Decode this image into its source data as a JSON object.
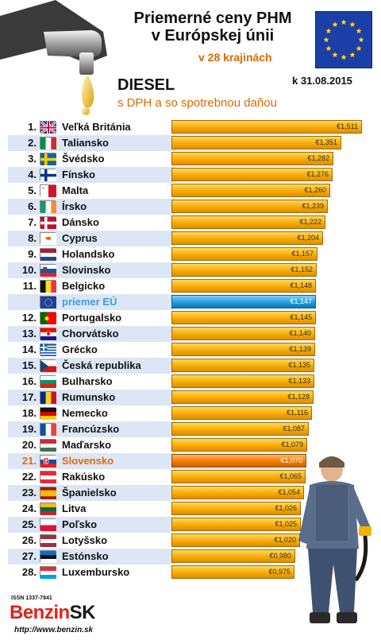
{
  "header": {
    "title_line1": "Priemerné ceny PHM",
    "title_line2": "v Európskej únii",
    "subtitle": "v 28 krajinách",
    "fuel": "DIESEL",
    "date": "k 31.08.2015",
    "tax_note": "s DPH a so spotrebnou daňou"
  },
  "footer": {
    "issn": "ISSN 1337-7841",
    "brand_part1": "Benzin",
    "brand_part2": "SK",
    "url": "http://www.benzin.sk"
  },
  "colors": {
    "bar": "#f5a800",
    "eu_bar": "#1e9ad8",
    "highlight_bar": "#ec7a00"
  },
  "chart_data": {
    "type": "bar",
    "orientation": "horizontal",
    "currency": "€",
    "xlim": [
      0,
      1.6
    ],
    "rows": [
      {
        "rank": "1.",
        "country": "Veľká Británia",
        "value": 1.511,
        "label": "€1,511",
        "flag": "gb"
      },
      {
        "rank": "2.",
        "country": "Taliansko",
        "value": 1.351,
        "label": "€1,351",
        "flag": "it"
      },
      {
        "rank": "3.",
        "country": "Švédsko",
        "value": 1.282,
        "label": "€1,282",
        "flag": "se"
      },
      {
        "rank": "4.",
        "country": "Fínsko",
        "value": 1.276,
        "label": "€1,276",
        "flag": "fi"
      },
      {
        "rank": "5.",
        "country": "Malta",
        "value": 1.26,
        "label": "€1,260",
        "flag": "mt"
      },
      {
        "rank": "6.",
        "country": "Írsko",
        "value": 1.239,
        "label": "€1,239",
        "flag": "ie"
      },
      {
        "rank": "7.",
        "country": "Dánsko",
        "value": 1.222,
        "label": "€1,222",
        "flag": "dk"
      },
      {
        "rank": "8.",
        "country": "Cyprus",
        "value": 1.204,
        "label": "€1,204",
        "flag": "cy"
      },
      {
        "rank": "9.",
        "country": "Holandsko",
        "value": 1.157,
        "label": "€1,157",
        "flag": "nl"
      },
      {
        "rank": "10.",
        "country": "Slovinsko",
        "value": 1.152,
        "label": "€1,152",
        "flag": "si"
      },
      {
        "rank": "11.",
        "country": "Belgicko",
        "value": 1.148,
        "label": "€1,148",
        "flag": "be"
      },
      {
        "rank": "",
        "country": "priemer EÚ",
        "value": 1.147,
        "label": "€1,147",
        "flag": "eu",
        "highlight": "eu"
      },
      {
        "rank": "12.",
        "country": "Portugalsko",
        "value": 1.145,
        "label": "€1,145",
        "flag": "pt"
      },
      {
        "rank": "13.",
        "country": "Chorvátsko",
        "value": 1.14,
        "label": "€1,140",
        "flag": "hr"
      },
      {
        "rank": "14.",
        "country": "Grécko",
        "value": 1.139,
        "label": "€1,139",
        "flag": "gr"
      },
      {
        "rank": "15.",
        "country": "Česká republika",
        "value": 1.135,
        "label": "€1,135",
        "flag": "cz"
      },
      {
        "rank": "16.",
        "country": "Bulharsko",
        "value": 1.133,
        "label": "€1,133",
        "flag": "bg"
      },
      {
        "rank": "17.",
        "country": "Rumunsko",
        "value": 1.128,
        "label": "€1,128",
        "flag": "ro"
      },
      {
        "rank": "18.",
        "country": "Nemecko",
        "value": 1.116,
        "label": "€1,116",
        "flag": "de"
      },
      {
        "rank": "19.",
        "country": "Francúzsko",
        "value": 1.087,
        "label": "€1,087",
        "flag": "fr"
      },
      {
        "rank": "20.",
        "country": "Maďarsko",
        "value": 1.079,
        "label": "€1,079",
        "flag": "hu"
      },
      {
        "rank": "21.",
        "country": "Slovensko",
        "value": 1.07,
        "label": "€1,070",
        "flag": "sk",
        "highlight": "sk"
      },
      {
        "rank": "22.",
        "country": "Rakúsko",
        "value": 1.065,
        "label": "€1,065",
        "flag": "at"
      },
      {
        "rank": "23.",
        "country": "Španielsko",
        "value": 1.054,
        "label": "€1,054",
        "flag": "es"
      },
      {
        "rank": "24.",
        "country": "Litva",
        "value": 1.026,
        "label": "€1,026",
        "flag": "lt"
      },
      {
        "rank": "25.",
        "country": "Poľsko",
        "value": 1.025,
        "label": "€1,025",
        "flag": "pl"
      },
      {
        "rank": "26.",
        "country": "Lotyšsko",
        "value": 1.02,
        "label": "€1,020",
        "flag": "lv"
      },
      {
        "rank": "27.",
        "country": "Estónsko",
        "value": 0.98,
        "label": "€0,980",
        "flag": "ee"
      },
      {
        "rank": "28.",
        "country": "Luxembursko",
        "value": 0.975,
        "label": "€0,975",
        "flag": "lu"
      }
    ]
  }
}
